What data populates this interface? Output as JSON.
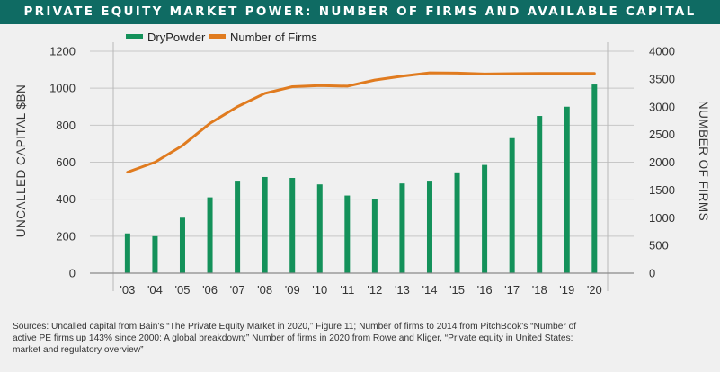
{
  "title": "PRIVATE EQUITY MARKET POWER: NUMBER OF FIRMS AND AVAILABLE CAPITAL",
  "sources": "Sources: Uncalled capital from Bain's “The Private Equity Market in 2020,” Figure 11; Number of firms to 2014 from PitchBook's “Number of active PE firms up 143% since 2000: A global breakdown;” Number of firms in 2020 from Rowe and Kliger, “Private equity in United States: market and regulatory overview”",
  "colors": {
    "bar": "#14915a",
    "line": "#e07b1f",
    "title_bg": "#0f6b63"
  },
  "chart_data": {
    "type": "bar",
    "categories": [
      "'03",
      "'04",
      "'05",
      "'06",
      "'07",
      "'08",
      "'09",
      "'10",
      "'11",
      "'12",
      "'13",
      "'14",
      "'15",
      "'16",
      "'17",
      "'18",
      "'19",
      "'20"
    ],
    "series": [
      {
        "name": "DryPowder",
        "type": "bar",
        "axis": "left",
        "values": [
          215,
          200,
          300,
          410,
          500,
          520,
          515,
          480,
          420,
          400,
          485,
          500,
          545,
          585,
          730,
          850,
          900,
          1020
        ]
      },
      {
        "name": "Number of Firms",
        "type": "line",
        "axis": "right",
        "values": [
          1820,
          2000,
          2300,
          2700,
          3000,
          3240,
          3360,
          3380,
          3370,
          3480,
          3550,
          3610,
          3605,
          3590,
          3595,
          3600,
          3600,
          3600
        ]
      }
    ],
    "ylabel": "UNCALLED CAPITAL $BN",
    "y2label": "NUMBER OF FIRMS",
    "ylim": [
      0,
      1200
    ],
    "y2lim": [
      0,
      4000
    ],
    "yticks": [
      0,
      200,
      400,
      600,
      800,
      1000,
      1200
    ],
    "y2ticks": [
      0,
      500,
      1000,
      1500,
      2000,
      2500,
      3000,
      3500,
      4000
    ],
    "grid": true,
    "legend": "top-left"
  }
}
